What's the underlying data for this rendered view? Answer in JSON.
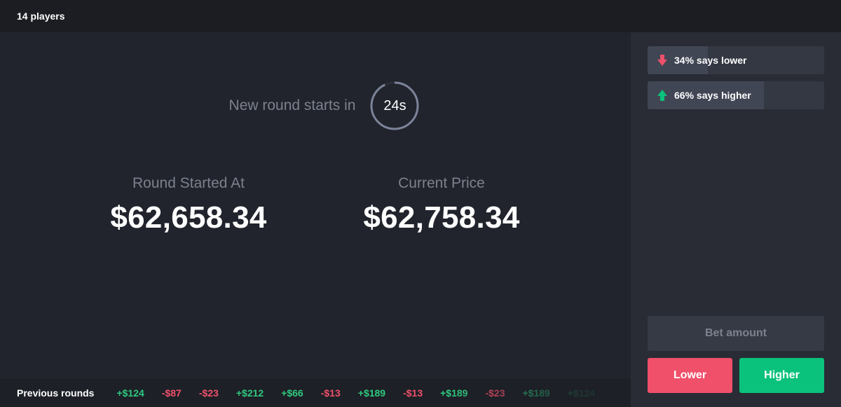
{
  "header": {
    "players": "14 players"
  },
  "countdown": {
    "text": "New round starts in",
    "value": "24s",
    "progress_fraction": 0.93
  },
  "round_started": {
    "label": "Round Started At",
    "value": "$62,658.34"
  },
  "current_price": {
    "label": "Current Price",
    "value": "$62,758.34"
  },
  "previous": {
    "label": "Previous rounds",
    "rounds": [
      {
        "value": "+$124",
        "dir": "up"
      },
      {
        "value": "-$87",
        "dir": "down"
      },
      {
        "value": "-$23",
        "dir": "down"
      },
      {
        "value": "+$212",
        "dir": "up"
      },
      {
        "value": "+$66",
        "dir": "up"
      },
      {
        "value": "-$13",
        "dir": "down"
      },
      {
        "value": "+$189",
        "dir": "up"
      },
      {
        "value": "-$13",
        "dir": "down"
      },
      {
        "value": "+$189",
        "dir": "up"
      },
      {
        "value": "-$23",
        "dir": "down"
      },
      {
        "value": "+$189",
        "dir": "up"
      },
      {
        "value": "+$124",
        "dir": "up"
      }
    ]
  },
  "votes": {
    "lower": {
      "label": "34% says lower",
      "percent": 34,
      "icon": "arrow-down-icon",
      "color": "#f0506a"
    },
    "higher": {
      "label": "66% says higher",
      "percent": 66,
      "icon": "arrow-up-icon",
      "color": "#0ac27b"
    }
  },
  "bet": {
    "placeholder": "Bet amount"
  },
  "buttons": {
    "lower": "Lower",
    "higher": "Higher"
  },
  "colors": {
    "up": "#2fc97f",
    "down": "#f0506a",
    "accent_lower": "#f0506a",
    "accent_higher": "#0ac27b"
  }
}
